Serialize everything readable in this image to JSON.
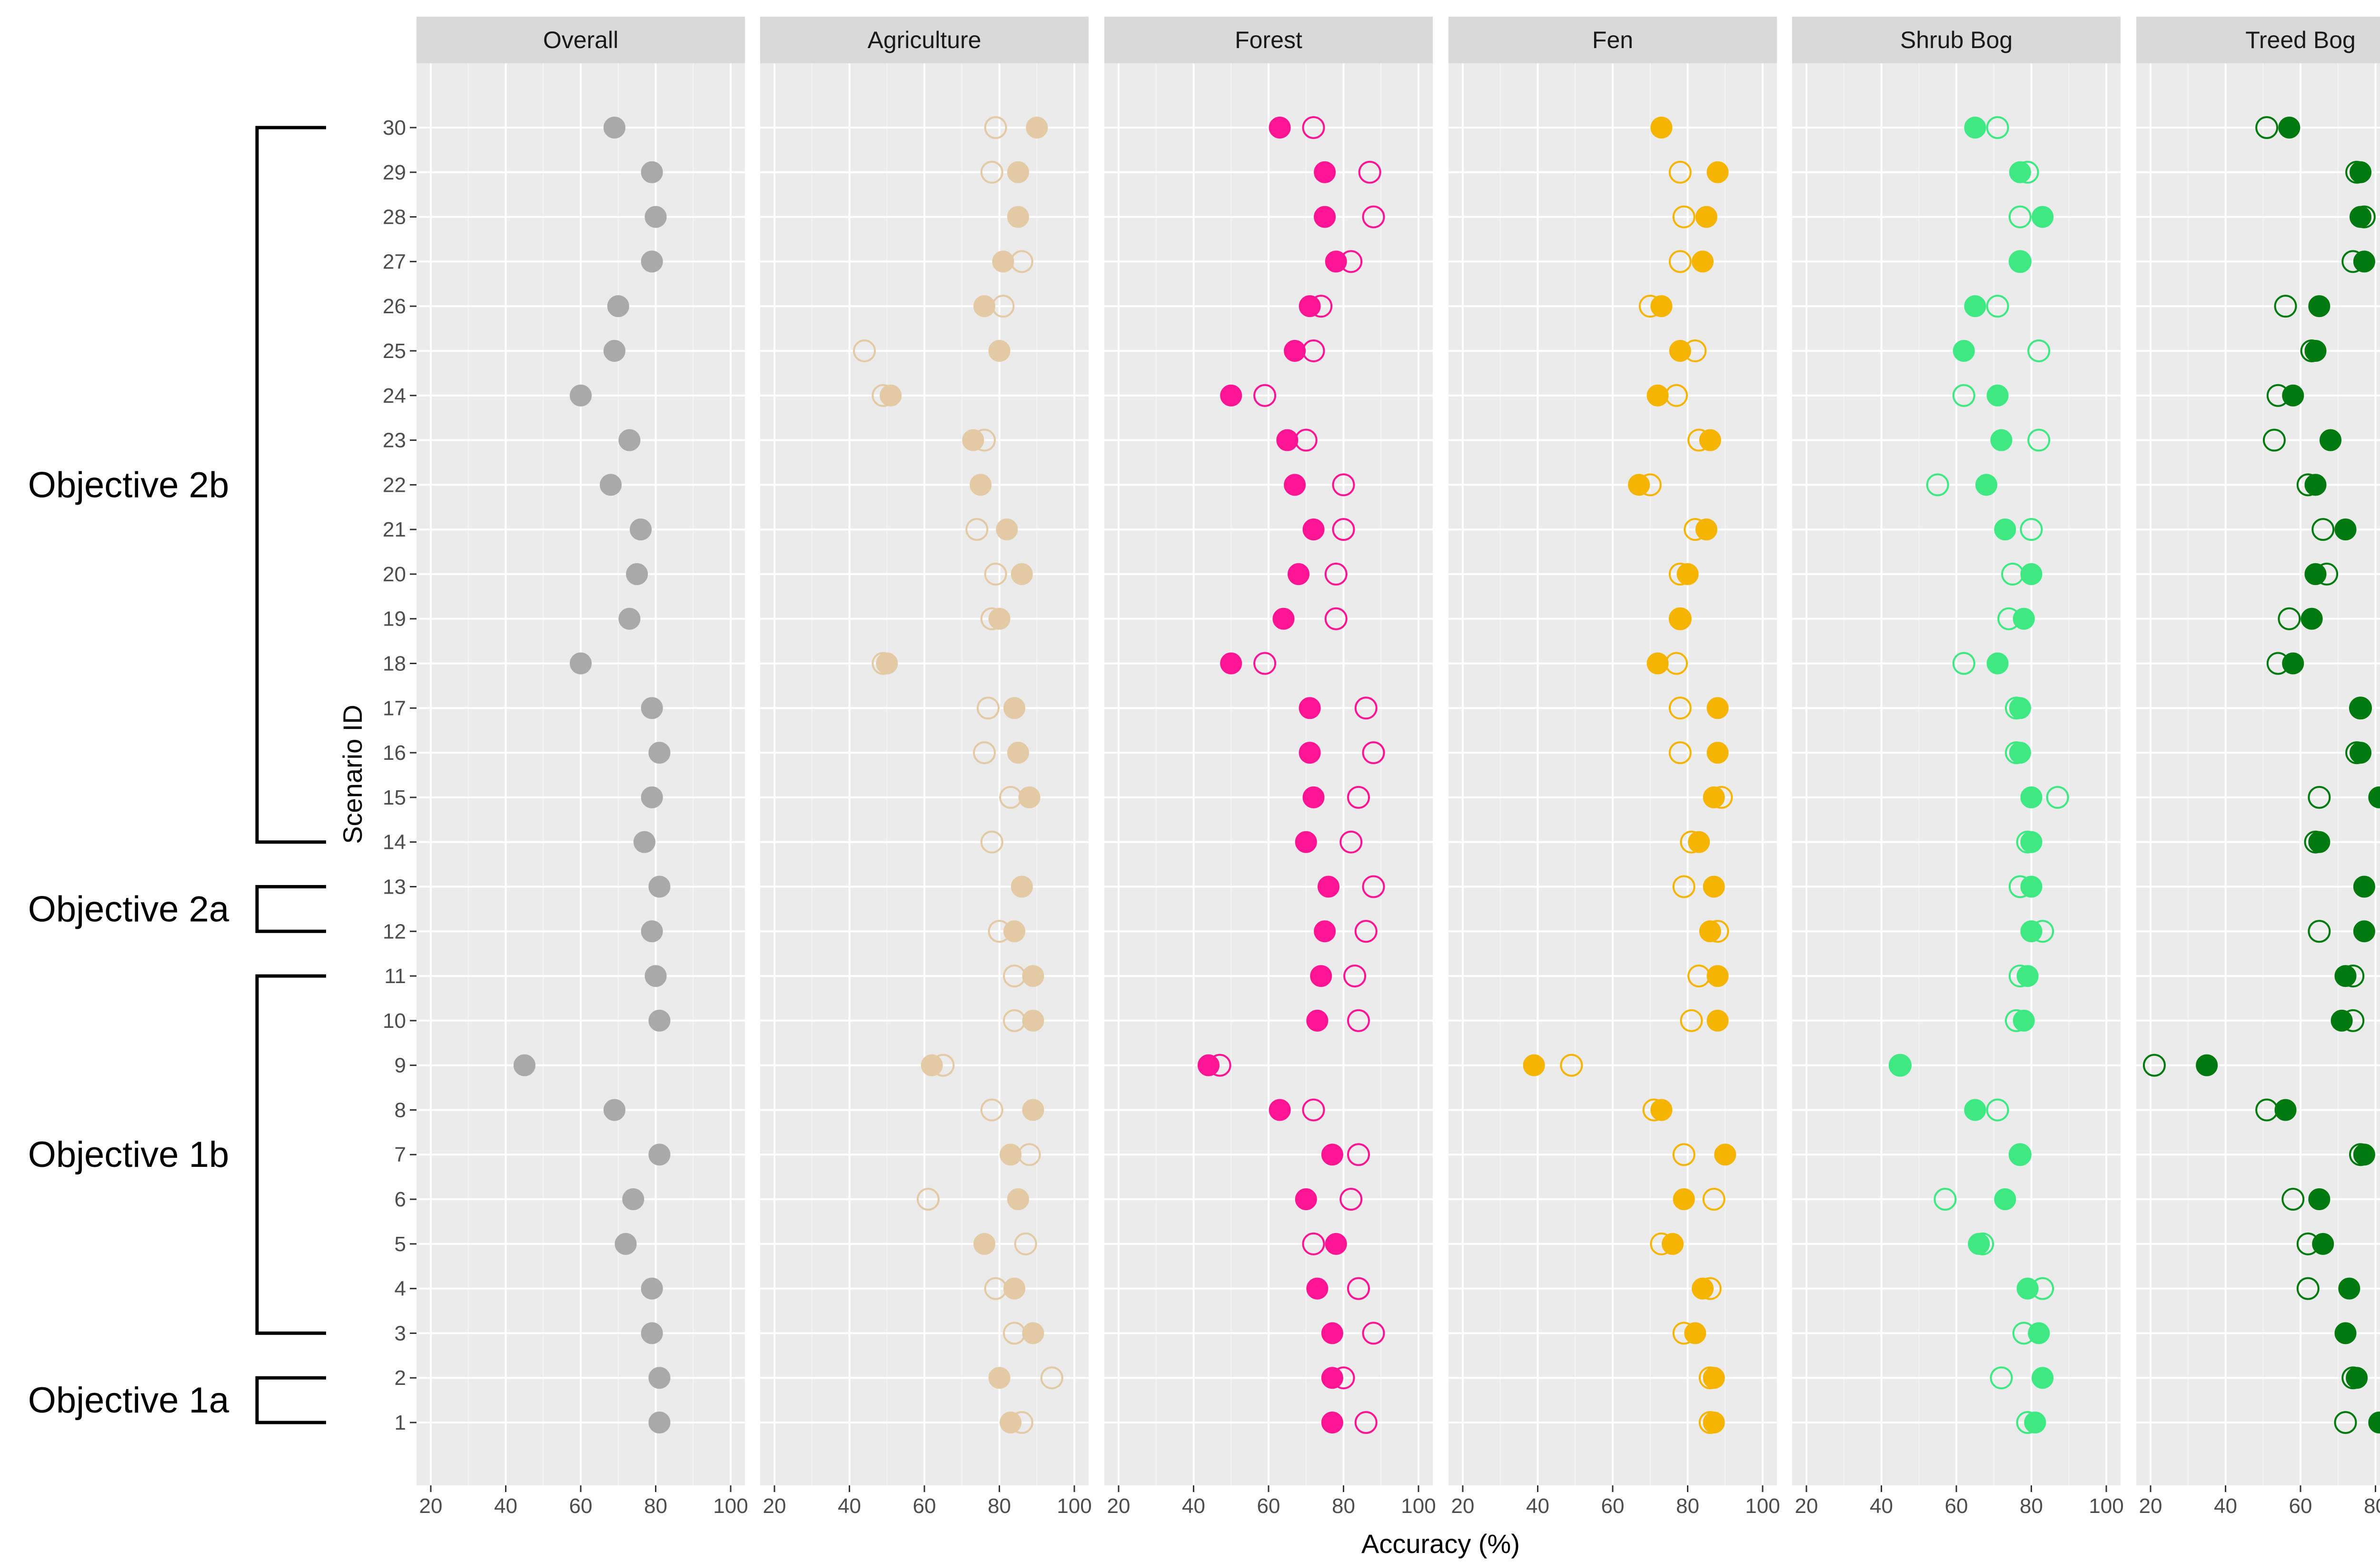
{
  "chart_data": {
    "type": "scatter",
    "layout": "faceted dot plot",
    "xlabel": "Accuracy (%)",
    "ylabel": "Scenario ID",
    "xlim": [
      20,
      100
    ],
    "x_ticks": [
      20,
      40,
      60,
      80,
      100
    ],
    "y_ticks": [
      1,
      2,
      3,
      4,
      5,
      6,
      7,
      8,
      9,
      10,
      11,
      12,
      13,
      14,
      15,
      16,
      17,
      18,
      19,
      20,
      21,
      22,
      23,
      24,
      25,
      26,
      27,
      28,
      29,
      30
    ],
    "scenarios": [
      1,
      2,
      3,
      4,
      5,
      6,
      7,
      8,
      9,
      10,
      11,
      12,
      13,
      14,
      15,
      16,
      17,
      18,
      19,
      20,
      21,
      22,
      23,
      24,
      25,
      26,
      27,
      28,
      29,
      30
    ],
    "marker_legend": {
      "filled": "solid marker",
      "open": "hollow marker"
    },
    "groups": [
      {
        "label": "Objective 1a",
        "from": 1,
        "to": 2
      },
      {
        "label": "Objective 1b",
        "from": 3,
        "to": 11
      },
      {
        "label": "Objective 2a",
        "from": 12,
        "to": 13
      },
      {
        "label": "Objective 2b",
        "from": 14,
        "to": 30
      }
    ],
    "panels": [
      {
        "name": "Overall",
        "color": "#a9a9a9",
        "filled": [
          81,
          81,
          79,
          79,
          72,
          74,
          81,
          69,
          45,
          81,
          80,
          79,
          81,
          77,
          79,
          81,
          79,
          60,
          73,
          75,
          76,
          68,
          73,
          60,
          69,
          70,
          79,
          80,
          79,
          69
        ],
        "open": null
      },
      {
        "name": "Agriculture",
        "color": "#e3c9a4",
        "filled": [
          83,
          80,
          89,
          84,
          76,
          85,
          83,
          89,
          62,
          89,
          89,
          84,
          86,
          null,
          88,
          85,
          84,
          50,
          80,
          86,
          82,
          75,
          73,
          51,
          80,
          76,
          81,
          85,
          85,
          90
        ],
        "open": [
          86,
          94,
          84,
          79,
          87,
          61,
          88,
          78,
          65,
          84,
          84,
          80,
          null,
          78,
          83,
          76,
          77,
          49,
          78,
          79,
          74,
          null,
          76,
          49,
          44,
          81,
          86,
          null,
          78,
          79
        ]
      },
      {
        "name": "Forest",
        "color": "#ff1493",
        "filled": [
          77,
          77,
          77,
          73,
          78,
          70,
          77,
          63,
          44,
          73,
          74,
          75,
          76,
          70,
          72,
          71,
          71,
          50,
          64,
          68,
          72,
          67,
          65,
          50,
          67,
          71,
          78,
          75,
          75,
          63
        ],
        "open": [
          86,
          80,
          88,
          84,
          72,
          82,
          84,
          72,
          47,
          84,
          83,
          86,
          88,
          82,
          84,
          88,
          86,
          59,
          78,
          78,
          80,
          80,
          70,
          59,
          72,
          74,
          82,
          88,
          87,
          72
        ]
      },
      {
        "name": "Fen",
        "color": "#f5b400",
        "filled": [
          87,
          87,
          82,
          84,
          76,
          79,
          90,
          73,
          39,
          88,
          88,
          86,
          87,
          83,
          87,
          88,
          88,
          72,
          78,
          80,
          85,
          67,
          86,
          72,
          78,
          73,
          84,
          85,
          88,
          73
        ],
        "open": [
          86,
          86,
          79,
          86,
          73,
          87,
          79,
          71,
          49,
          81,
          83,
          88,
          79,
          81,
          89,
          78,
          78,
          77,
          78,
          78,
          82,
          70,
          83,
          77,
          82,
          70,
          78,
          79,
          78,
          null
        ]
      },
      {
        "name": "Shrub Bog",
        "color": "#3ee882",
        "filled": [
          81,
          83,
          82,
          79,
          66,
          73,
          77,
          65,
          45,
          78,
          79,
          80,
          80,
          80,
          80,
          77,
          77,
          71,
          78,
          80,
          73,
          68,
          72,
          71,
          62,
          65,
          77,
          83,
          77,
          65
        ],
        "open": [
          79,
          72,
          78,
          83,
          67,
          57,
          77,
          71,
          45,
          76,
          77,
          83,
          77,
          79,
          87,
          76,
          76,
          62,
          74,
          75,
          80,
          55,
          82,
          62,
          82,
          71,
          77,
          77,
          79,
          71
        ]
      },
      {
        "name": "Treed Bog",
        "color": "#007a0e",
        "filled": [
          81,
          75,
          72,
          73,
          66,
          65,
          77,
          56,
          35,
          71,
          72,
          77,
          77,
          65,
          81,
          76,
          76,
          58,
          63,
          64,
          72,
          64,
          68,
          58,
          64,
          65,
          77,
          76,
          76,
          57
        ],
        "open": [
          72,
          74,
          null,
          62,
          62,
          58,
          76,
          51,
          21,
          74,
          74,
          65,
          null,
          64,
          65,
          75,
          76,
          54,
          57,
          67,
          66,
          62,
          53,
          54,
          63,
          56,
          74,
          77,
          75,
          51
        ]
      }
    ]
  }
}
